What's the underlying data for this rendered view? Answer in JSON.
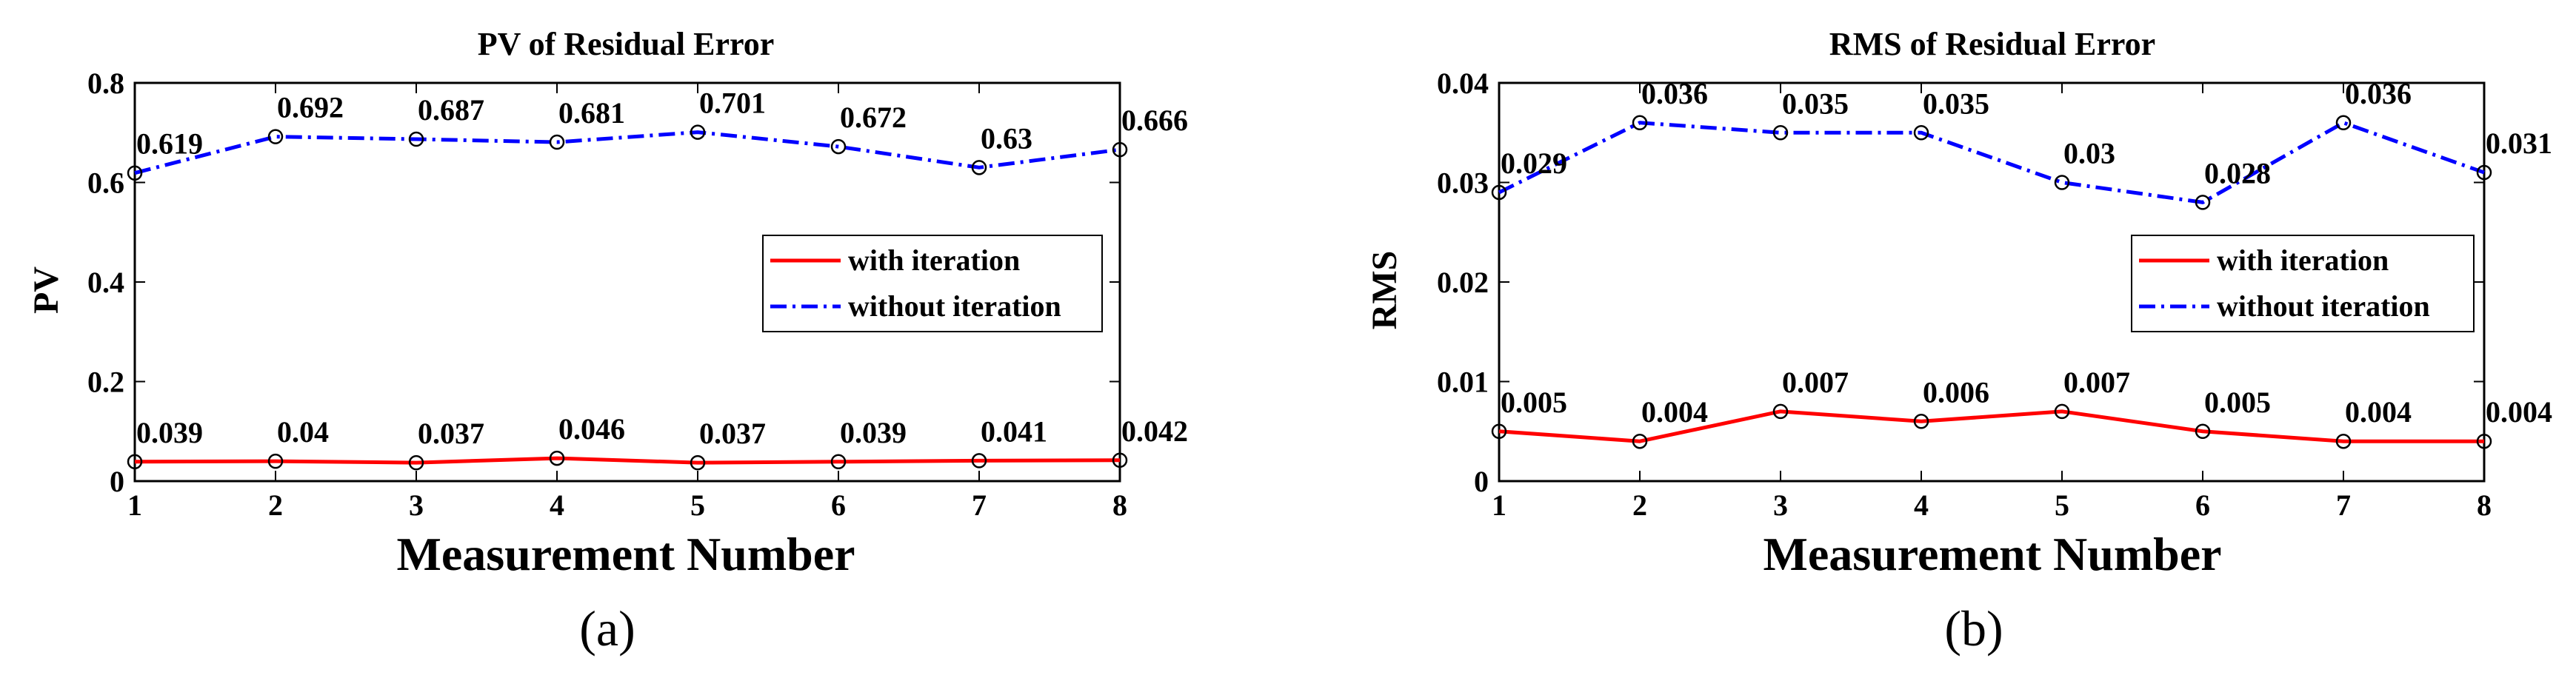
{
  "chart_data": [
    {
      "type": "line",
      "title": "PV of Residual Error",
      "xlabel": "Measurement Number",
      "ylabel": "PV",
      "panel_label": "(a)",
      "x": [
        1,
        2,
        3,
        4,
        5,
        6,
        7,
        8
      ],
      "xlim": [
        1,
        8
      ],
      "ylim": [
        0,
        0.8
      ],
      "yticks": [
        0,
        0.2,
        0.4,
        0.6,
        0.8
      ],
      "ytick_labels": [
        "0",
        "0.2",
        "0.4",
        "0.6",
        "0.8"
      ],
      "grid": false,
      "legend_position": "right",
      "series": [
        {
          "name": "with iteration",
          "color": "#ff0000",
          "style": "solid",
          "values": [
            0.039,
            0.04,
            0.037,
            0.046,
            0.037,
            0.039,
            0.041,
            0.042
          ],
          "labels": [
            "0.039",
            "0.04",
            "0.037",
            "0.046",
            "0.037",
            "0.039",
            "0.041",
            "0.042"
          ]
        },
        {
          "name": "without iteration",
          "color": "#0000ff",
          "style": "dash-dot",
          "values": [
            0.619,
            0.692,
            0.687,
            0.681,
            0.701,
            0.672,
            0.63,
            0.666
          ],
          "labels": [
            "0.619",
            "0.692",
            "0.687",
            "0.681",
            "0.701",
            "0.672",
            "0.63",
            "0.666"
          ]
        }
      ]
    },
    {
      "type": "line",
      "title": "RMS of Residual Error",
      "xlabel": "Measurement Number",
      "ylabel": "RMS",
      "panel_label": "(b)",
      "x": [
        1,
        2,
        3,
        4,
        5,
        6,
        7,
        8
      ],
      "xlim": [
        1,
        8
      ],
      "ylim": [
        0,
        0.04
      ],
      "yticks": [
        0,
        0.01,
        0.02,
        0.03,
        0.04
      ],
      "ytick_labels": [
        "0",
        "0.01",
        "0.02",
        "0.03",
        "0.04"
      ],
      "grid": false,
      "legend_position": "right",
      "series": [
        {
          "name": "with iteration",
          "color": "#ff0000",
          "style": "solid",
          "values": [
            0.005,
            0.004,
            0.007,
            0.006,
            0.007,
            0.005,
            0.004,
            0.004
          ],
          "labels": [
            "0.005",
            "0.004",
            "0.007",
            "0.006",
            "0.007",
            "0.005",
            "0.004",
            "0.004"
          ]
        },
        {
          "name": "without iteration",
          "color": "#0000ff",
          "style": "dash-dot",
          "values": [
            0.029,
            0.036,
            0.035,
            0.035,
            0.03,
            0.028,
            0.036,
            0.031
          ],
          "labels": [
            "0.029",
            "0.036",
            "0.035",
            "0.035",
            "0.03",
            "0.028",
            "0.036",
            "0.031"
          ]
        }
      ]
    }
  ]
}
